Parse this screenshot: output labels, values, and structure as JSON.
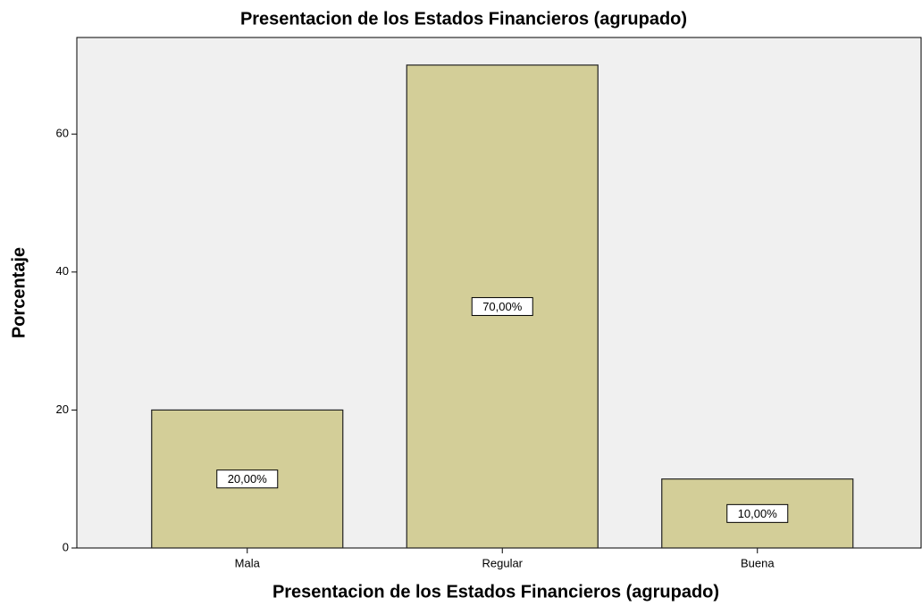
{
  "chart_data": {
    "type": "bar",
    "title": "Presentacion de los Estados Financieros (agrupado)",
    "x_label": "Presentacion de los Estados Financieros (agrupado)",
    "y_label": "Porcentaje",
    "categories": [
      "Mala",
      "Regular",
      "Buena"
    ],
    "values": [
      20,
      70,
      10
    ],
    "value_labels": [
      "20,00%",
      "70,00%",
      "10,00%"
    ],
    "color": "#d3ce98",
    "ylim": [
      0,
      74
    ],
    "yticks": [
      0,
      20,
      40,
      60
    ],
    "grid": false
  }
}
